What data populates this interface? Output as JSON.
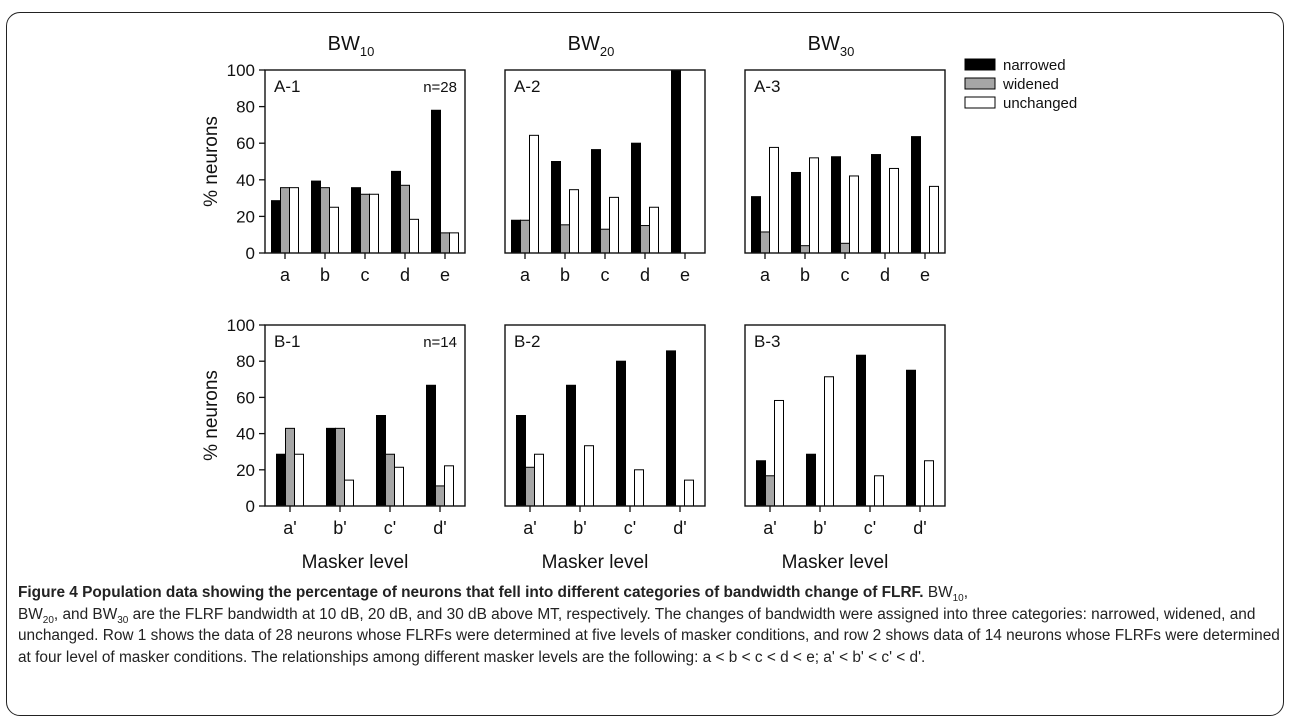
{
  "chart_data": {
    "type": "bar",
    "ylabel": "% neurons",
    "xlabel": "Masker level",
    "ylim": [
      0,
      100
    ],
    "yticks": [
      "0",
      "20",
      "40",
      "60",
      "80",
      "100"
    ],
    "grid": false,
    "legend": {
      "placement": "top-right",
      "entries": [
        {
          "name": "narrowed",
          "color": "#000000"
        },
        {
          "name": "widened",
          "color": "#a6a6a6"
        },
        {
          "name": "unchanged",
          "color": "#ffffff"
        }
      ]
    },
    "columns": [
      {
        "main": "BW",
        "sub": "10"
      },
      {
        "main": "BW",
        "sub": "20"
      },
      {
        "main": "BW",
        "sub": "30"
      }
    ],
    "panels": [
      {
        "label": "A-1",
        "n_label": "n=28",
        "categories": [
          "a",
          "b",
          "c",
          "d",
          "e"
        ],
        "series": [
          {
            "name": "narrowed",
            "values": [
              28.6,
              39.3,
              35.7,
              44.6,
              78.0
            ]
          },
          {
            "name": "widened",
            "values": [
              35.7,
              35.7,
              32.1,
              37.0,
              11.0
            ]
          },
          {
            "name": "unchanged",
            "values": [
              35.7,
              25.0,
              32.1,
              18.4,
              11.0
            ]
          }
        ]
      },
      {
        "label": "A-2",
        "n_label": "",
        "categories": [
          "a",
          "b",
          "c",
          "d",
          "e"
        ],
        "series": [
          {
            "name": "narrowed",
            "values": [
              17.9,
              50.0,
              56.5,
              60.0,
              100
            ]
          },
          {
            "name": "widened",
            "values": [
              17.9,
              15.4,
              13.0,
              15.0,
              0
            ]
          },
          {
            "name": "unchanged",
            "values": [
              64.3,
              34.6,
              30.4,
              25.0,
              0
            ]
          }
        ]
      },
      {
        "label": "A-3",
        "n_label": "",
        "categories": [
          "a",
          "b",
          "c",
          "d",
          "e"
        ],
        "series": [
          {
            "name": "narrowed",
            "values": [
              30.8,
              44.0,
              52.6,
              53.8,
              63.6
            ]
          },
          {
            "name": "widened",
            "values": [
              11.5,
              4.0,
              5.3,
              0,
              0
            ]
          },
          {
            "name": "unchanged",
            "values": [
              57.7,
              52.0,
              42.1,
              46.2,
              36.4
            ]
          }
        ]
      },
      {
        "label": "B-1",
        "n_label": "n=14",
        "categories": [
          "a'",
          "b'",
          "c'",
          "d'"
        ],
        "series": [
          {
            "name": "narrowed",
            "values": [
              28.6,
              42.9,
              50.0,
              66.7
            ]
          },
          {
            "name": "widened",
            "values": [
              42.9,
              42.9,
              28.6,
              11.1
            ]
          },
          {
            "name": "unchanged",
            "values": [
              28.6,
              14.3,
              21.4,
              22.2
            ]
          }
        ]
      },
      {
        "label": "B-2",
        "n_label": "",
        "categories": [
          "a'",
          "b'",
          "c'",
          "d'"
        ],
        "series": [
          {
            "name": "narrowed",
            "values": [
              50.0,
              66.7,
              80.0,
              85.7
            ]
          },
          {
            "name": "widened",
            "values": [
              21.4,
              0,
              0,
              0
            ]
          },
          {
            "name": "unchanged",
            "values": [
              28.6,
              33.3,
              20.0,
              14.3
            ]
          }
        ]
      },
      {
        "label": "B-3",
        "n_label": "",
        "categories": [
          "a'",
          "b'",
          "c'",
          "d'"
        ],
        "series": [
          {
            "name": "narrowed",
            "values": [
              25.0,
              28.6,
              83.3,
              75.0
            ]
          },
          {
            "name": "widened",
            "values": [
              16.7,
              0,
              0,
              0
            ]
          },
          {
            "name": "unchanged",
            "values": [
              58.3,
              71.4,
              16.7,
              25.0
            ]
          }
        ]
      }
    ]
  },
  "caption": {
    "lead": "Figure 4 Population data showing the percentage of neurons that fell into different categories of bandwidth change of FLRF.",
    "s1_a": "BW",
    "s1_sub1": "10",
    "s1_b": ",",
    "s1_c": "BW",
    "s1_sub2": "20",
    "s1_d": ", and BW",
    "s1_sub3": "30",
    "s1_e": " are the FLRF bandwidth at 10 dB, 20 dB, and 30 dB above MT, respectively. The changes of bandwidth were assigned into three categories: narrowed, widened, and unchanged. Row 1 shows the data of 28 neurons whose FLRFs were determined at five levels of masker conditions, and row 2 shows data of 14 neurons whose FLRFs were determined at four level of masker conditions. The relationships among different masker levels are the following: a < b < c < d < e; a' < b' < c' < d'."
  }
}
